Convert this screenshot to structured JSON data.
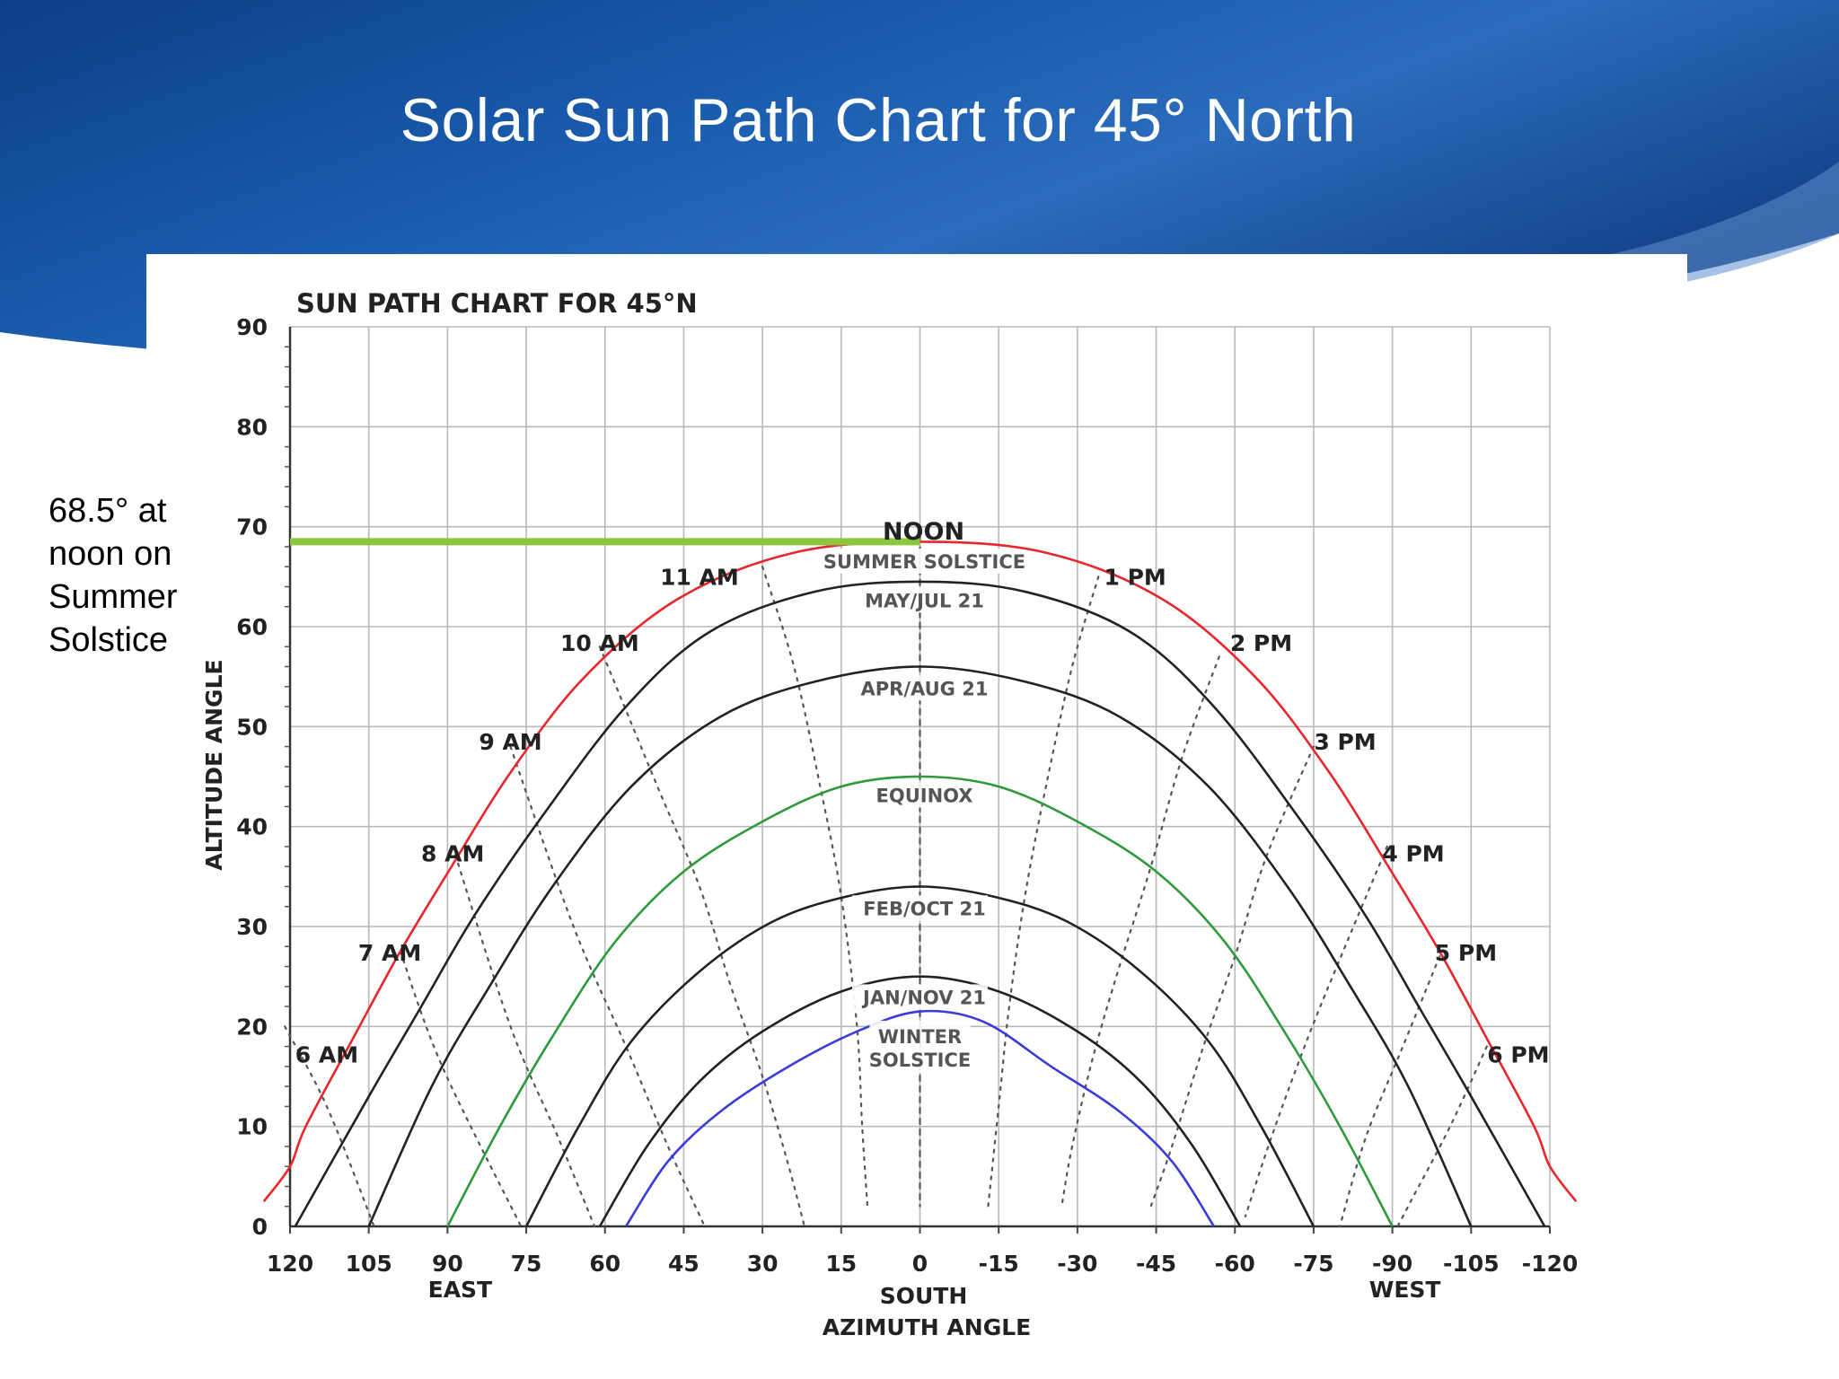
{
  "slide": {
    "title": "Solar Sun Path Chart for 45° North",
    "annotation": "68.5° at noon on Summer Solstice"
  },
  "colors": {
    "banner_dark": "#0d3f86",
    "banner_light": "#2b6cbc",
    "summer_curve": "#e8262b",
    "equinox_curve": "#2e9a3b",
    "winter_curve": "#3b3bdc",
    "month_curve": "#222222",
    "highlight_line": "#8cc63f",
    "grid": "#b9b9b9"
  },
  "chart_data": {
    "type": "line",
    "title": "SUN PATH CHART FOR 45°N",
    "xlabel": "AZIMUTH ANGLE",
    "ylabel": "ALTITUDE ANGLE",
    "xlim": [
      120,
      -120
    ],
    "ylim": [
      0,
      90
    ],
    "grid": true,
    "x_ticks": [
      "120",
      "105",
      "90",
      "75",
      "60",
      "45",
      "30",
      "15",
      "0",
      "-15",
      "-30",
      "-45",
      "-60",
      "-75",
      "-90",
      "-105",
      "-120"
    ],
    "x_tick_values": [
      120,
      105,
      90,
      75,
      60,
      45,
      30,
      15,
      0,
      -15,
      -30,
      -45,
      -60,
      -75,
      -90,
      -105,
      -120
    ],
    "y_ticks": [
      "0",
      "10",
      "20",
      "30",
      "40",
      "50",
      "60",
      "70",
      "80",
      "90"
    ],
    "y_tick_values": [
      0,
      10,
      20,
      30,
      40,
      50,
      60,
      70,
      80,
      90
    ],
    "direction_labels": [
      {
        "text": "EAST",
        "x": 90
      },
      {
        "text": "SOUTH",
        "x": 0
      },
      {
        "text": "WEST",
        "x": -90
      }
    ],
    "series": [
      {
        "name": "SUMMER SOLSTICE",
        "color": "#e8262b",
        "label_y": 66.2,
        "points": [
          [
            125,
            2.5
          ],
          [
            120,
            6
          ],
          [
            117,
            10
          ],
          [
            108,
            18.8
          ],
          [
            99,
            27.5
          ],
          [
            89,
            36.2
          ],
          [
            78,
            45.4
          ],
          [
            64,
            54.9
          ],
          [
            46,
            62.8
          ],
          [
            24,
            67.4
          ],
          [
            0,
            68.5
          ],
          [
            -24,
            67.4
          ],
          [
            -46,
            62.8
          ],
          [
            -64,
            54.9
          ],
          [
            -78,
            45.4
          ],
          [
            -89,
            36.2
          ],
          [
            -99,
            27.5
          ],
          [
            -108,
            18.8
          ],
          [
            -117,
            10
          ],
          [
            -120,
            6
          ],
          [
            -125,
            2.5
          ]
        ]
      },
      {
        "name": "MAY/JUL 21",
        "color": "#222222",
        "label_y": 62.3,
        "points": [
          [
            119,
            0
          ],
          [
            105,
            13
          ],
          [
            95,
            22
          ],
          [
            85,
            31
          ],
          [
            72,
            41
          ],
          [
            56,
            52
          ],
          [
            40,
            59.5
          ],
          [
            20,
            63.5
          ],
          [
            0,
            64.5
          ],
          [
            -20,
            63.5
          ],
          [
            -40,
            59.5
          ],
          [
            -56,
            52
          ],
          [
            -72,
            41
          ],
          [
            -85,
            31
          ],
          [
            -95,
            22
          ],
          [
            -105,
            13
          ],
          [
            -119,
            0
          ]
        ]
      },
      {
        "name": "APR/AUG 21",
        "color": "#222222",
        "label_y": 53.5,
        "points": [
          [
            105,
            0
          ],
          [
            93,
            14
          ],
          [
            82,
            24
          ],
          [
            70,
            34
          ],
          [
            55,
            44
          ],
          [
            38,
            51
          ],
          [
            20,
            54.5
          ],
          [
            0,
            56
          ],
          [
            -20,
            54.5
          ],
          [
            -38,
            51
          ],
          [
            -55,
            44
          ],
          [
            -70,
            34
          ],
          [
            -82,
            24
          ],
          [
            -93,
            14
          ],
          [
            -105,
            0
          ]
        ]
      },
      {
        "name": "EQUINOX",
        "color": "#2e9a3b",
        "label_y": 42.8,
        "points": [
          [
            90,
            0
          ],
          [
            80,
            10
          ],
          [
            70,
            19
          ],
          [
            58,
            28.5
          ],
          [
            45,
            35.5
          ],
          [
            30,
            40.5
          ],
          [
            15,
            44
          ],
          [
            0,
            45
          ],
          [
            -15,
            44
          ],
          [
            -30,
            40.5
          ],
          [
            -45,
            35.5
          ],
          [
            -58,
            28.5
          ],
          [
            -70,
            19
          ],
          [
            -80,
            10
          ],
          [
            -90,
            0
          ]
        ]
      },
      {
        "name": "FEB/OCT 21",
        "color": "#222222",
        "label_y": 31.5,
        "points": [
          [
            75,
            0
          ],
          [
            65,
            10
          ],
          [
            55,
            18.5
          ],
          [
            42,
            25.5
          ],
          [
            28,
            30.5
          ],
          [
            14,
            33
          ],
          [
            0,
            34
          ],
          [
            -14,
            33
          ],
          [
            -28,
            30.5
          ],
          [
            -42,
            25.5
          ],
          [
            -55,
            18.5
          ],
          [
            -65,
            10
          ],
          [
            -75,
            0
          ]
        ]
      },
      {
        "name": "JAN/NOV 21",
        "color": "#222222",
        "label_y": 22.6,
        "points": [
          [
            61,
            0
          ],
          [
            52,
            8
          ],
          [
            42,
            14.5
          ],
          [
            30,
            19.5
          ],
          [
            15,
            23.5
          ],
          [
            0,
            25
          ],
          [
            -15,
            23.5
          ],
          [
            -30,
            19.5
          ],
          [
            -42,
            14.5
          ],
          [
            -52,
            8
          ],
          [
            -61,
            0
          ]
        ]
      },
      {
        "name": "WINTER SOLSTICE",
        "color": "#3b3bdc",
        "label_y": 19.5,
        "points": [
          [
            56,
            0
          ],
          [
            48,
            6.5
          ],
          [
            38,
            11.5
          ],
          [
            25,
            16
          ],
          [
            12,
            19.5
          ],
          [
            0,
            21.5
          ],
          [
            -12,
            20.5
          ],
          [
            -25,
            16
          ],
          [
            -38,
            11.5
          ],
          [
            -48,
            6.5
          ],
          [
            -56,
            0
          ]
        ]
      }
    ],
    "hour_lines": [
      {
        "name": "6 AM",
        "label_x": 113,
        "label_y": 17.2,
        "points": [
          [
            121,
            20
          ],
          [
            113,
            12
          ],
          [
            104,
            0
          ]
        ]
      },
      {
        "name": "7 AM",
        "label_x": 101,
        "label_y": 27.4,
        "points": [
          [
            99,
            27.5
          ],
          [
            91,
            16
          ],
          [
            76,
            0
          ]
        ]
      },
      {
        "name": "8 AM",
        "label_x": 89,
        "label_y": 37.3,
        "points": [
          [
            89,
            38
          ],
          [
            78,
            20
          ],
          [
            69,
            9
          ],
          [
            62,
            0
          ]
        ]
      },
      {
        "name": "9 AM",
        "label_x": 78,
        "label_y": 48.5,
        "points": [
          [
            78,
            48
          ],
          [
            66,
            30
          ],
          [
            56,
            18
          ],
          [
            48,
            8
          ],
          [
            41,
            0
          ]
        ]
      },
      {
        "name": "10 AM",
        "label_x": 61,
        "label_y": 58.4,
        "points": [
          [
            61,
            58
          ],
          [
            50,
            44
          ],
          [
            42,
            34
          ],
          [
            36,
            24
          ],
          [
            30,
            15
          ],
          [
            25,
            6
          ],
          [
            22,
            0
          ]
        ]
      },
      {
        "name": "11 AM",
        "label_x": 42,
        "label_y": 65,
        "points": [
          [
            30,
            66
          ],
          [
            24,
            56
          ],
          [
            19,
            44
          ],
          [
            15,
            33
          ],
          [
            12,
            20
          ],
          [
            11,
            10
          ],
          [
            10,
            2
          ]
        ]
      },
      {
        "name": "NOON",
        "label_x": 0,
        "label_y": 69.5,
        "points": [
          [
            0,
            69
          ],
          [
            0,
            2
          ]
        ]
      },
      {
        "name": "1 PM",
        "label_x": -41,
        "label_y": 65,
        "points": [
          [
            -34,
            65
          ],
          [
            -29,
            56
          ],
          [
            -24,
            44
          ],
          [
            -20,
            33
          ],
          [
            -17,
            22
          ],
          [
            -15,
            12
          ],
          [
            -13,
            2
          ]
        ]
      },
      {
        "name": "2 PM",
        "label_x": -65,
        "label_y": 58.4,
        "points": [
          [
            -57,
            57
          ],
          [
            -50,
            47
          ],
          [
            -44,
            36
          ],
          [
            -38,
            26
          ],
          [
            -33,
            17
          ],
          [
            -29,
            8
          ],
          [
            -27,
            2
          ]
        ]
      },
      {
        "name": "3 PM",
        "label_x": -81,
        "label_y": 48.5,
        "points": [
          [
            -75,
            48
          ],
          [
            -66,
            37
          ],
          [
            -60,
            27
          ],
          [
            -54,
            18
          ],
          [
            -48,
            8
          ],
          [
            -44,
            2
          ]
        ]
      },
      {
        "name": "4 PM",
        "label_x": -94,
        "label_y": 37.3,
        "points": [
          [
            -89,
            38
          ],
          [
            -81,
            28
          ],
          [
            -74,
            19
          ],
          [
            -67,
            9
          ],
          [
            -62,
            1
          ]
        ]
      },
      {
        "name": "5 PM",
        "label_x": -104,
        "label_y": 27.4,
        "points": [
          [
            -99,
            27
          ],
          [
            -92,
            18
          ],
          [
            -85,
            9
          ],
          [
            -80,
            0
          ]
        ]
      },
      {
        "name": "6 PM",
        "label_x": -114,
        "label_y": 17.2,
        "points": [
          [
            -108,
            18
          ],
          [
            -101,
            10
          ],
          [
            -94,
            3
          ],
          [
            -91,
            0
          ]
        ]
      }
    ],
    "annotation_line": {
      "y": 68.5,
      "x_from": 120,
      "x_to": 0
    }
  }
}
